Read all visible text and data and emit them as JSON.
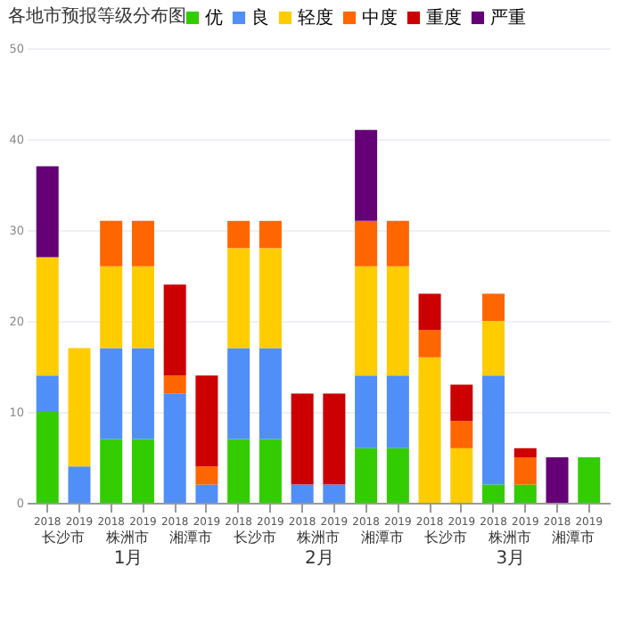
{
  "chart_data": {
    "type": "bar",
    "title": "各地市预报等级分布图",
    "stacked": true,
    "legend": "top",
    "grid": "y",
    "categories": [
      "2018",
      "2019",
      "2018",
      "2019",
      "2018",
      "2019",
      "2018",
      "2019",
      "2018",
      "2019",
      "2018",
      "2019",
      "2018",
      "2019",
      "2018",
      "2019",
      "2018",
      "2019"
    ],
    "annotations": [
      "长沙市",
      "株洲市",
      "湘潭市",
      "长沙市",
      "株洲市",
      "湘潭市",
      "长沙市",
      "株洲市",
      "湘潭市",
      "1月",
      "2月",
      "3月"
    ],
    "ylim": [
      0,
      50
    ],
    "yticks": [
      0,
      10,
      20,
      30,
      40,
      50
    ],
    "series": [
      {
        "name": "优",
        "color": "#33cc00",
        "values": [
          10,
          0,
          7,
          7,
          0,
          0,
          7,
          7,
          0,
          0,
          6,
          6,
          0,
          0,
          2,
          2,
          0,
          5
        ]
      },
      {
        "name": "良",
        "color": "#4f8ff7",
        "values": [
          4,
          4,
          10,
          10,
          12,
          2,
          10,
          10,
          2,
          2,
          8,
          8,
          0,
          0,
          12,
          0,
          0,
          0
        ]
      },
      {
        "name": "轻度",
        "color": "#ffcc00",
        "values": [
          13,
          13,
          9,
          9,
          0,
          0,
          11,
          11,
          0,
          0,
          12,
          12,
          16,
          6,
          6,
          0,
          0,
          0
        ]
      },
      {
        "name": "中度",
        "color": "#ff6600",
        "values": [
          0,
          0,
          5,
          5,
          2,
          2,
          3,
          3,
          0,
          0,
          5,
          5,
          3,
          3,
          3,
          3,
          0,
          0
        ]
      },
      {
        "name": "重度",
        "color": "#cc0000",
        "values": [
          0,
          0,
          0,
          0,
          10,
          10,
          0,
          0,
          10,
          10,
          0,
          0,
          4,
          4,
          0,
          1,
          0,
          0
        ]
      },
      {
        "name": "严重",
        "color": "#660077",
        "values": [
          10,
          0,
          0,
          0,
          0,
          0,
          0,
          0,
          0,
          0,
          10,
          0,
          0,
          0,
          0,
          0,
          5,
          0
        ]
      }
    ]
  }
}
